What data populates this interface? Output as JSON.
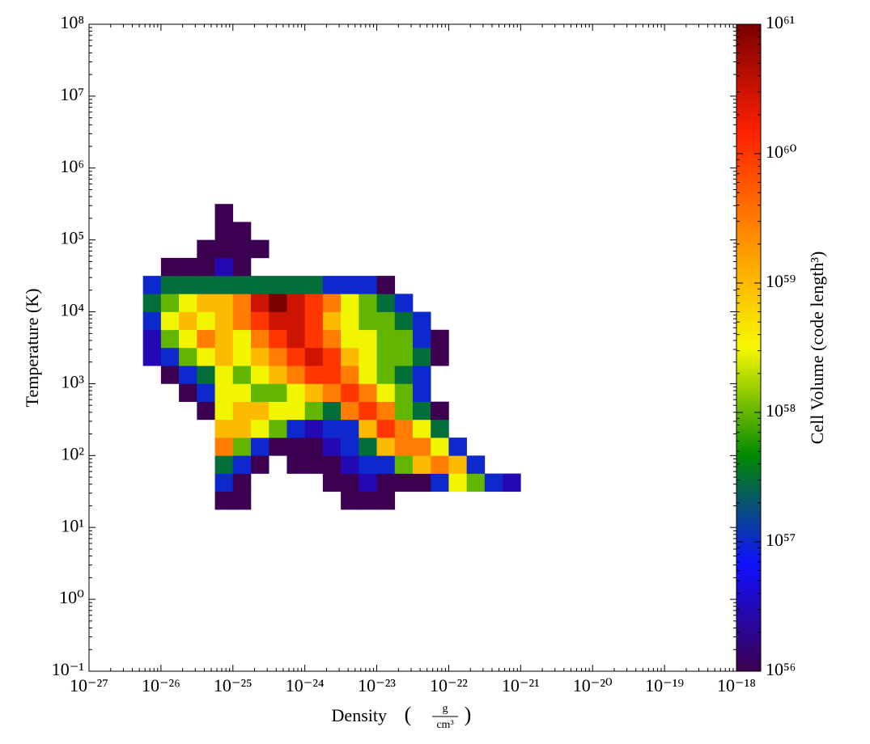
{
  "chart_data": {
    "type": "heatmap",
    "xlabel": "Density",
    "xunit_num": "g",
    "xunit_den": "cm³",
    "ylabel": "Temperature  (K)",
    "colorbar_label": "Cell Volume  (code length³)",
    "xscale": "log",
    "yscale": "log",
    "zscale": "log",
    "xlim": [
      1e-27,
      1e-18
    ],
    "ylim": [
      0.1,
      100000000.0
    ],
    "zlim": [
      1e+56,
      1e+61
    ],
    "xticks": [
      {
        "value": 1e-27,
        "label": "10⁻²⁷"
      },
      {
        "value": 1e-26,
        "label": "10⁻²⁶"
      },
      {
        "value": 1e-25,
        "label": "10⁻²⁵"
      },
      {
        "value": 1e-24,
        "label": "10⁻²⁴"
      },
      {
        "value": 1e-23,
        "label": "10⁻²³"
      },
      {
        "value": 1e-22,
        "label": "10⁻²²"
      },
      {
        "value": 1e-21,
        "label": "10⁻²¹"
      },
      {
        "value": 1e-20,
        "label": "10⁻²⁰"
      },
      {
        "value": 1e-19,
        "label": "10⁻¹⁹"
      },
      {
        "value": 1e-18,
        "label": "10⁻¹⁸"
      }
    ],
    "yticks": [
      {
        "value": 0.1,
        "label": "10⁻¹"
      },
      {
        "value": 1,
        "label": "10⁰"
      },
      {
        "value": 10,
        "label": "10¹"
      },
      {
        "value": 100,
        "label": "10²"
      },
      {
        "value": 1000,
        "label": "10³"
      },
      {
        "value": 10000,
        "label": "10⁴"
      },
      {
        "value": 100000,
        "label": "10⁵"
      },
      {
        "value": 1000000,
        "label": "10⁶"
      },
      {
        "value": 10000000,
        "label": "10⁷"
      },
      {
        "value": 100000000,
        "label": "10⁸"
      }
    ],
    "zticks": [
      {
        "value": 1e+56,
        "label": "10⁵⁶"
      },
      {
        "value": 1e+57,
        "label": "10⁵⁷"
      },
      {
        "value": 1e+58,
        "label": "10⁵⁸"
      },
      {
        "value": 1e+59,
        "label": "10⁵⁹"
      },
      {
        "value": 1e+60,
        "label": "10⁶⁰"
      },
      {
        "value": 1e+61,
        "label": "10⁶¹"
      }
    ],
    "colormap": [
      "#3c0050",
      "#1010ff",
      "#008a00",
      "#f8f800",
      "#ff9000",
      "#ff2000",
      "#7a0000"
    ],
    "xbins": [
      5.623e-27,
      1e-26,
      1.778e-26,
      3.162e-26,
      5.623e-26,
      1e-25,
      1.778e-25,
      3.162e-25,
      5.623e-25,
      1e-24,
      1.778e-24,
      3.162e-24,
      5.623e-24,
      1e-23,
      1.778e-23,
      3.162e-23,
      5.623e-23,
      1e-22,
      1.778e-22,
      3.162e-22,
      5.623e-22,
      1e-21,
      1.778e-21
    ],
    "ybins": [
      17.78,
      31.62,
      56.23,
      100,
      177.8,
      316.2,
      562.3,
      1000,
      1778,
      3162,
      5623,
      10000,
      17783,
      31623,
      56234,
      100000,
      177828,
      316228
    ],
    "values": [
      [
        null,
        null,
        null,
        null,
        1e+56,
        1e+56,
        null,
        null,
        null,
        null,
        null,
        1e+56,
        1e+56,
        1e+56,
        null,
        null,
        null,
        null,
        null,
        null,
        null,
        null
      ],
      [
        null,
        null,
        null,
        null,
        1e+57,
        1e+56,
        null,
        null,
        null,
        null,
        1e+56,
        1e+56,
        3e+56,
        1e+56,
        1e+56,
        1e+56,
        1e+57,
        3e+58,
        1e+58,
        1e+57,
        3e+56,
        null
      ],
      [
        null,
        null,
        null,
        null,
        3e+57,
        1e+57,
        1e+56,
        null,
        1e+56,
        1e+56,
        1e+56,
        3e+56,
        1e+57,
        1e+57,
        1e+58,
        1e+59,
        3e+59,
        1e+59,
        1e+57,
        null,
        null,
        null
      ],
      [
        null,
        null,
        null,
        null,
        3e+59,
        1e+58,
        1e+57,
        1e+56,
        1e+56,
        1e+56,
        3e+56,
        1e+57,
        3e+57,
        1e+59,
        3e+59,
        3e+59,
        3e+58,
        1e+57,
        null,
        null,
        null,
        null
      ],
      [
        null,
        null,
        null,
        null,
        1e+59,
        1e+59,
        3e+58,
        1e+58,
        1e+57,
        3e+56,
        1e+57,
        1e+57,
        1e+59,
        1e+60,
        3e+59,
        3e+58,
        3e+57,
        null,
        null,
        null,
        null,
        null
      ],
      [
        null,
        null,
        null,
        1e+56,
        3e+58,
        1e+59,
        1e+59,
        3e+58,
        3e+58,
        1e+58,
        3e+57,
        3e+59,
        1e+60,
        3e+59,
        1e+58,
        3e+57,
        1e+56,
        null,
        null,
        null,
        null,
        null
      ],
      [
        null,
        null,
        1e+56,
        1e+57,
        3e+58,
        3e+58,
        1e+58,
        1e+58,
        3e+58,
        1e+59,
        3e+59,
        1e+60,
        3e+59,
        3e+58,
        1e+58,
        1e+57,
        null,
        null,
        null,
        null,
        null,
        null
      ],
      [
        null,
        1e+56,
        1e+57,
        3e+57,
        3e+58,
        1e+58,
        3e+58,
        1e+59,
        3e+59,
        1e+60,
        1e+60,
        3e+59,
        3e+58,
        1e+58,
        3e+57,
        1e+57,
        null,
        null,
        null,
        null,
        null,
        null
      ],
      [
        3e+56,
        1e+57,
        1e+58,
        3e+58,
        1e+59,
        3e+58,
        1e+59,
        3e+59,
        1e+60,
        3e+60,
        1e+60,
        1e+59,
        3e+58,
        1e+58,
        1e+58,
        3e+57,
        1e+56,
        null,
        null,
        null,
        null,
        null
      ],
      [
        3e+56,
        1e+58,
        3e+58,
        3e+59,
        1e+59,
        3e+58,
        3e+59,
        1e+60,
        3e+60,
        1e+60,
        3e+59,
        3e+58,
        3e+58,
        1e+58,
        1e+58,
        1e+57,
        1e+56,
        null,
        null,
        null,
        null,
        null
      ],
      [
        1e+57,
        3e+58,
        1e+59,
        3e+58,
        1e+59,
        3e+59,
        1e+60,
        3e+60,
        3e+60,
        1e+60,
        1e+59,
        3e+58,
        1e+58,
        1e+58,
        3e+57,
        1e+57,
        null,
        null,
        null,
        null,
        null,
        null
      ],
      [
        3e+57,
        1e+58,
        3e+58,
        1e+59,
        1e+59,
        3e+59,
        3e+60,
        1e+61,
        3e+60,
        1e+60,
        3e+59,
        3e+58,
        1e+58,
        3e+57,
        1e+57,
        null,
        null,
        null,
        null,
        null,
        null,
        null
      ],
      [
        1e+57,
        3e+57,
        3e+57,
        3e+57,
        3e+57,
        3e+57,
        3e+57,
        3e+57,
        3e+57,
        3e+57,
        1e+57,
        1e+57,
        1e+57,
        1e+56,
        null,
        null,
        null,
        null,
        null,
        null,
        null,
        null
      ],
      [
        null,
        1e+56,
        1e+56,
        1e+56,
        3e+56,
        1e+56,
        null,
        null,
        null,
        null,
        null,
        null,
        null,
        null,
        null,
        null,
        null,
        null,
        null,
        null,
        null,
        null
      ],
      [
        null,
        null,
        null,
        1e+56,
        1e+56,
        1e+56,
        1e+56,
        null,
        null,
        null,
        null,
        null,
        null,
        null,
        null,
        null,
        null,
        null,
        null,
        null,
        null,
        null
      ],
      [
        null,
        null,
        null,
        null,
        1e+56,
        1e+56,
        null,
        null,
        null,
        null,
        null,
        null,
        null,
        null,
        null,
        null,
        null,
        null,
        null,
        null,
        null,
        null
      ],
      [
        null,
        null,
        null,
        null,
        1e+56,
        null,
        null,
        null,
        null,
        null,
        null,
        null,
        null,
        null,
        null,
        null,
        null,
        null,
        null,
        null,
        null,
        null
      ]
    ]
  }
}
